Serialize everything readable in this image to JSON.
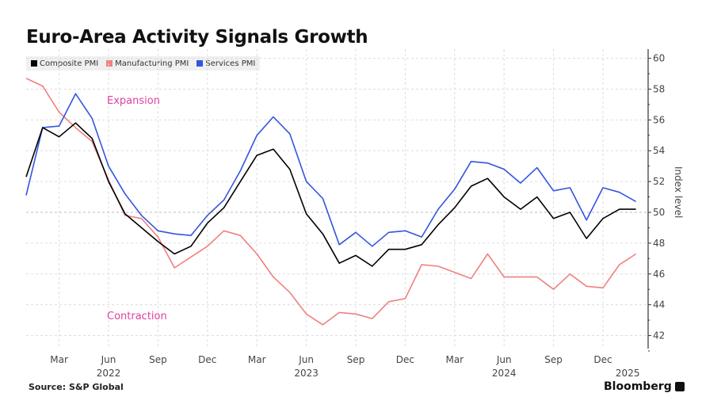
{
  "chart_data": {
    "type": "line",
    "title": "Euro-Area Activity Signals Growth",
    "xlabel": "",
    "ylabel": "Index level",
    "ylim": [
      41,
      60.5
    ],
    "yticks": [
      42,
      44,
      46,
      48,
      50,
      52,
      54,
      56,
      58,
      60
    ],
    "grid": true,
    "legend_position": "top-left",
    "x": [
      "2022-01",
      "2022-02",
      "2022-03",
      "2022-04",
      "2022-05",
      "2022-06",
      "2022-07",
      "2022-08",
      "2022-09",
      "2022-10",
      "2022-11",
      "2022-12",
      "2023-01",
      "2023-02",
      "2023-03",
      "2023-04",
      "2023-05",
      "2023-06",
      "2023-07",
      "2023-08",
      "2023-09",
      "2023-10",
      "2023-11",
      "2023-12",
      "2024-01",
      "2024-02",
      "2024-03",
      "2024-04",
      "2024-05",
      "2024-06",
      "2024-07",
      "2024-08",
      "2024-09",
      "2024-10",
      "2024-11",
      "2024-12",
      "2025-01",
      "2025-02"
    ],
    "xticks": [
      {
        "index": 2,
        "label": "Mar",
        "year": ""
      },
      {
        "index": 5,
        "label": "Jun",
        "year": "2022"
      },
      {
        "index": 8,
        "label": "Sep",
        "year": ""
      },
      {
        "index": 11,
        "label": "Dec",
        "year": ""
      },
      {
        "index": 14,
        "label": "Mar",
        "year": ""
      },
      {
        "index": 17,
        "label": "Jun",
        "year": "2023"
      },
      {
        "index": 20,
        "label": "Sep",
        "year": ""
      },
      {
        "index": 23,
        "label": "Dec",
        "year": ""
      },
      {
        "index": 26,
        "label": "Mar",
        "year": ""
      },
      {
        "index": 29,
        "label": "Jun",
        "year": "2024"
      },
      {
        "index": 32,
        "label": "Sep",
        "year": ""
      },
      {
        "index": 35,
        "label": "Dec",
        "year": ""
      },
      {
        "index": 36.5,
        "label": "",
        "year": "2025"
      }
    ],
    "series": [
      {
        "name": "Composite PMI",
        "color": "#000000",
        "values": [
          52.3,
          55.5,
          54.9,
          55.8,
          54.8,
          52.0,
          49.9,
          49.0,
          48.1,
          47.3,
          47.8,
          49.3,
          50.3,
          52.0,
          53.7,
          54.1,
          52.8,
          49.9,
          48.6,
          46.7,
          47.2,
          46.5,
          47.6,
          47.6,
          47.9,
          49.2,
          50.3,
          51.7,
          52.2,
          51.0,
          50.2,
          51.0,
          49.6,
          50.0,
          48.3,
          49.6,
          50.2,
          50.2
        ]
      },
      {
        "name": "Manufacturing PMI",
        "color": "#f08080",
        "values": [
          58.7,
          58.2,
          56.5,
          55.5,
          54.6,
          52.1,
          49.8,
          49.6,
          48.4,
          46.4,
          47.1,
          47.8,
          48.8,
          48.5,
          47.3,
          45.8,
          44.8,
          43.4,
          42.7,
          43.5,
          43.4,
          43.1,
          44.2,
          44.4,
          46.6,
          46.5,
          46.1,
          45.7,
          47.3,
          45.8,
          45.8,
          45.8,
          45.0,
          46.0,
          45.2,
          45.1,
          46.6,
          47.3
        ]
      },
      {
        "name": "Services PMI",
        "color": "#3355dd",
        "values": [
          51.1,
          55.5,
          55.6,
          57.7,
          56.1,
          53.0,
          51.2,
          49.8,
          48.8,
          48.6,
          48.5,
          49.8,
          50.8,
          52.7,
          55.0,
          56.2,
          55.1,
          52.0,
          50.9,
          47.9,
          48.7,
          47.8,
          48.7,
          48.8,
          48.4,
          50.2,
          51.5,
          53.3,
          53.2,
          52.8,
          51.9,
          52.9,
          51.4,
          51.6,
          49.5,
          51.6,
          51.3,
          50.7
        ]
      }
    ],
    "annotations": [
      {
        "text": "Expansion",
        "color": "#e040a0",
        "x_index": 5,
        "y": 57.3
      },
      {
        "text": "Contraction",
        "color": "#e040a0",
        "x_index": 5,
        "y": 43.3
      }
    ]
  },
  "footer": {
    "source": "Source: S&P Global",
    "brand": "Bloomberg"
  }
}
